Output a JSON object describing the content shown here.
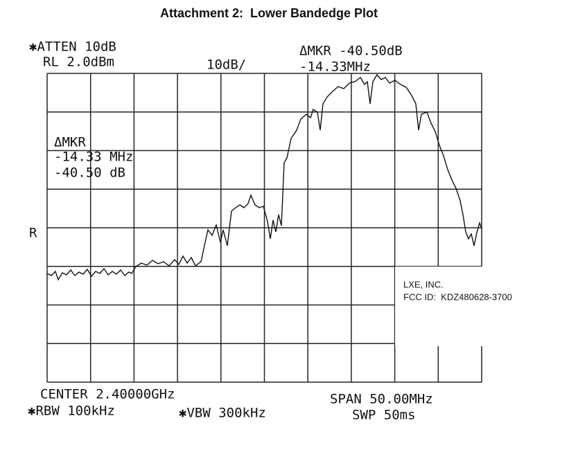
{
  "title": "Attachment 2:  Lower Bandedge Plot",
  "header": {
    "atten": "✱ATTEN 10dB",
    "rl": "RL 2.0dBm",
    "scale": "10dB/",
    "delta_marker": "ΔMKR -40.50dB",
    "delta_freq": "-14.33MHz"
  },
  "marker_box": {
    "label": "ΔMKR",
    "freq": "-14.33 MHz",
    "level": "-40.50 dB"
  },
  "ref_marker": "R",
  "footer": {
    "center": "CENTER 2.40000GHz",
    "rbw": "✱RBW 100kHz",
    "vbw": "✱VBW 300kHz",
    "span": "SPAN 50.00MHz",
    "sweep": "SWP 50ms"
  },
  "label": {
    "company": "LXE, INC.",
    "fcc_id": "FCC ID:  KDZ480628-3700"
  }
}
